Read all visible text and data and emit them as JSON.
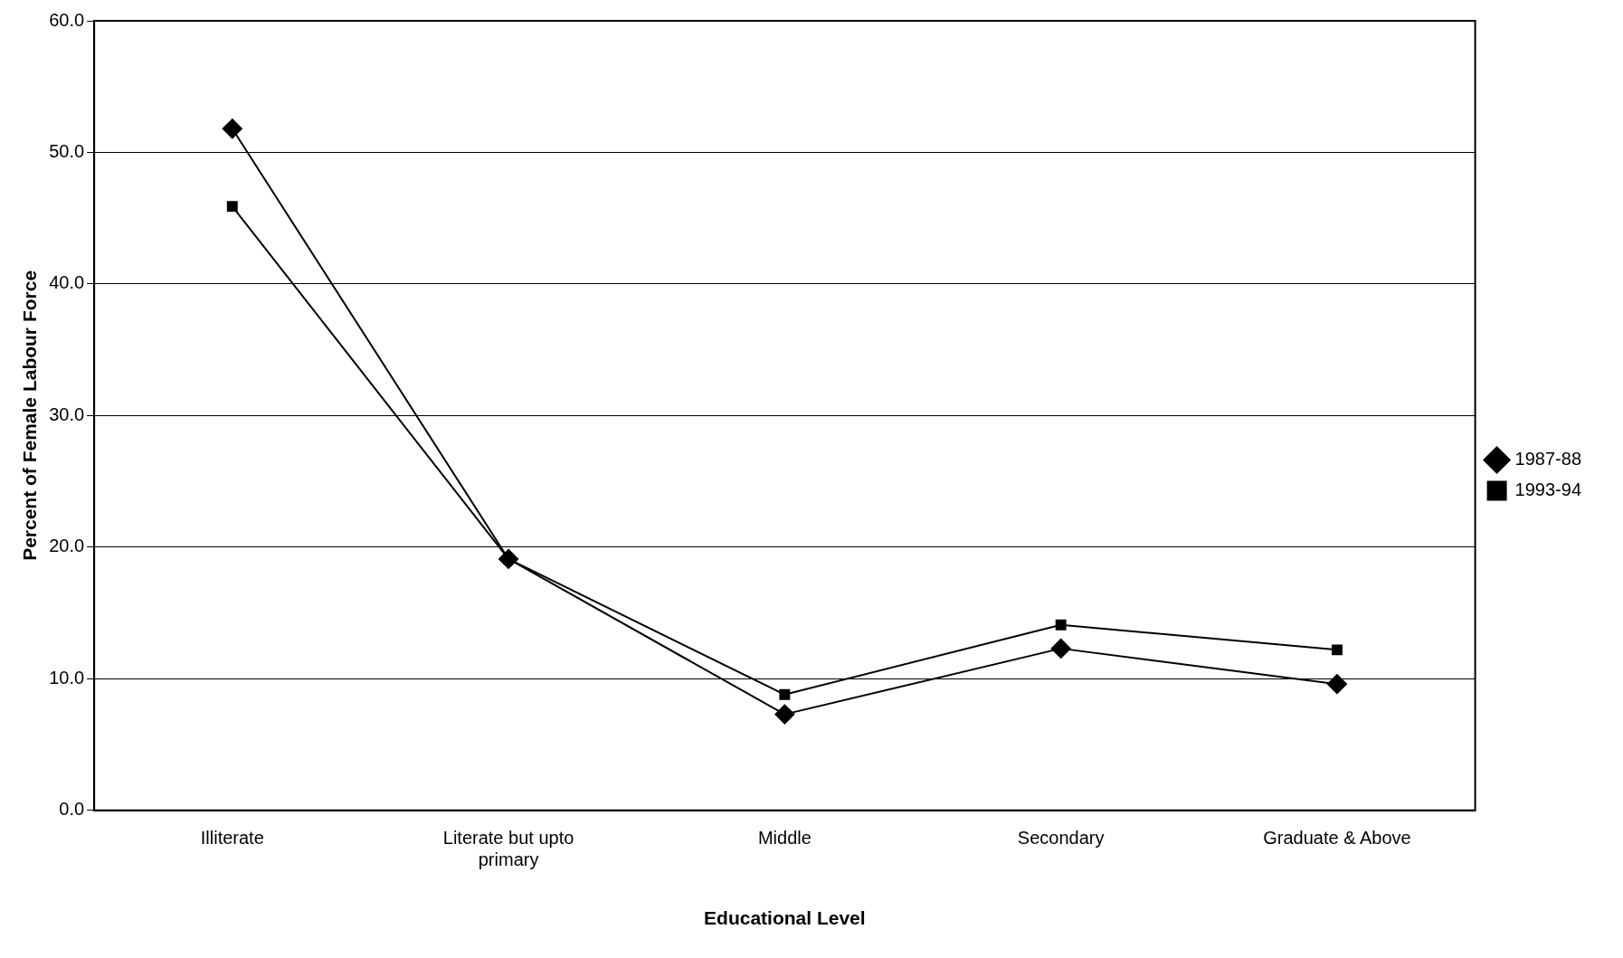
{
  "chart_data": {
    "type": "line",
    "xlabel": "Educational Level",
    "ylabel": "Percent of Female Labour Force",
    "categories": [
      "Illiterate",
      "Literate but upto primary",
      "Middle",
      "Secondary",
      "Graduate & Above"
    ],
    "series": [
      {
        "name": "1987-88",
        "color": "#000000",
        "marker": "diamond",
        "values": [
          51.8,
          19.1,
          7.3,
          12.3,
          9.6
        ]
      },
      {
        "name": "1993-94",
        "color": "#000000",
        "marker": "square",
        "values": [
          45.9,
          19.1,
          8.8,
          14.1,
          12.2
        ]
      }
    ],
    "ylim": [
      0,
      60
    ],
    "yticks": [
      {
        "value": 0,
        "label": "0.0"
      },
      {
        "value": 10,
        "label": "10.0"
      },
      {
        "value": 20,
        "label": "20.0"
      },
      {
        "value": 30,
        "label": "30.0"
      },
      {
        "value": 40,
        "label": "40.0"
      },
      {
        "value": 50,
        "label": "50.0"
      },
      {
        "value": 60,
        "label": "60.0"
      }
    ],
    "grid": "y",
    "legend": "right",
    "line_style": "solid"
  }
}
